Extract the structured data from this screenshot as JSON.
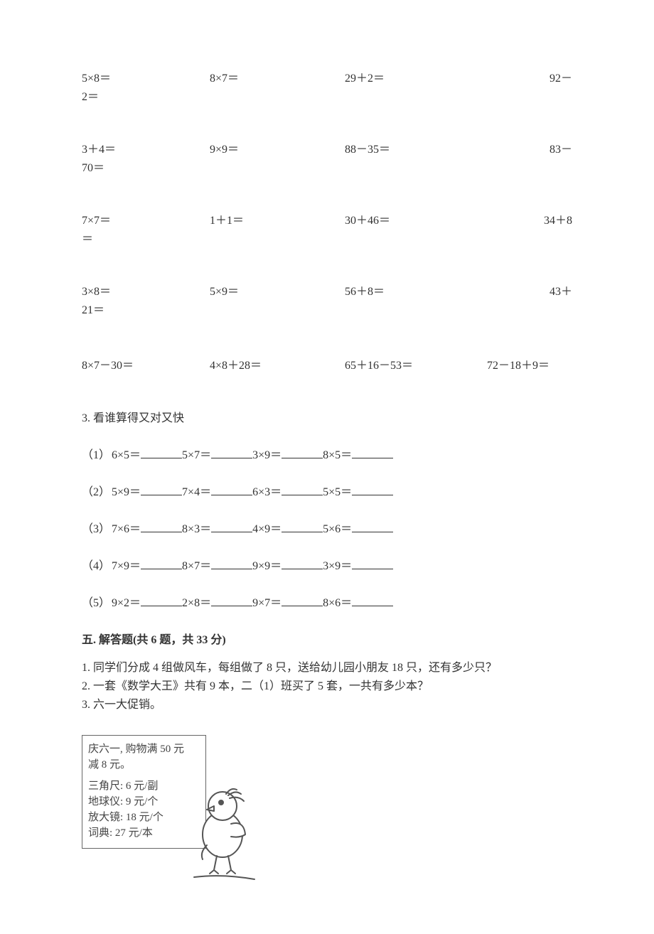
{
  "arithmetic": {
    "rows": [
      {
        "c1": "5×8＝",
        "c2": "8×7＝",
        "c3": "29＋2＝",
        "c4_a": "92－",
        "c4_b": "2＝"
      },
      {
        "c1": "3＋4＝",
        "c2": "9×9＝",
        "c3": "88－35＝",
        "c4_a": "83－",
        "c4_b": "70＝"
      },
      {
        "c1": "7×7＝",
        "c2": "1＋1＝",
        "c3": "30＋46＝",
        "c4_a": "34＋8",
        "c4_b": "＝"
      },
      {
        "c1": "3×8＝",
        "c2": "5×9＝",
        "c3": "56＋8＝",
        "c4_a": "43＋",
        "c4_b": "21＝"
      }
    ],
    "compound": {
      "c1": "8×7－30＝",
      "c2": "4×8＋28＝",
      "c3": "65＋16－53＝",
      "c4": "72－18＋9＝"
    }
  },
  "q3": {
    "title": "3. 看谁算得又对又快",
    "rows": [
      {
        "prefix": "（1）",
        "items": [
          "6×5＝",
          "5×7＝",
          "3×9＝",
          "8×5＝"
        ]
      },
      {
        "prefix": "（2）",
        "items": [
          "5×9＝",
          "7×4＝",
          "6×3＝",
          "5×5＝"
        ]
      },
      {
        "prefix": "（3）",
        "items": [
          "7×6＝",
          "8×3＝",
          "4×9＝",
          "5×6＝"
        ]
      },
      {
        "prefix": "（4）",
        "items": [
          "7×9＝",
          "8×7＝",
          "9×9＝",
          "3×9＝"
        ]
      },
      {
        "prefix": "（5）",
        "items": [
          "9×2＝",
          "2×8＝",
          "9×7＝",
          "8×6＝"
        ]
      }
    ]
  },
  "section5": {
    "header": "五. 解答题(共 6 题，共 33 分)",
    "questions": [
      "1. 同学们分成 4 组做风车，每组做了 8 只，送给幼儿园小朋友 18 只，还有多少只？",
      "2. 一套《数学大王》共有 9 本，二（1）班买了 5 套，一共有多少本？",
      "3. 六一大促销。"
    ]
  },
  "promo": {
    "header_line1": "庆六一, 购物满 50 元",
    "header_line2": "减 8 元。",
    "items": [
      "三角尺: 6 元/副",
      "地球仪: 9 元/个",
      "放大镜: 18 元/个",
      "词典: 27 元/本"
    ]
  },
  "colors": {
    "text": "#333333",
    "background": "#ffffff",
    "border": "#666666"
  }
}
